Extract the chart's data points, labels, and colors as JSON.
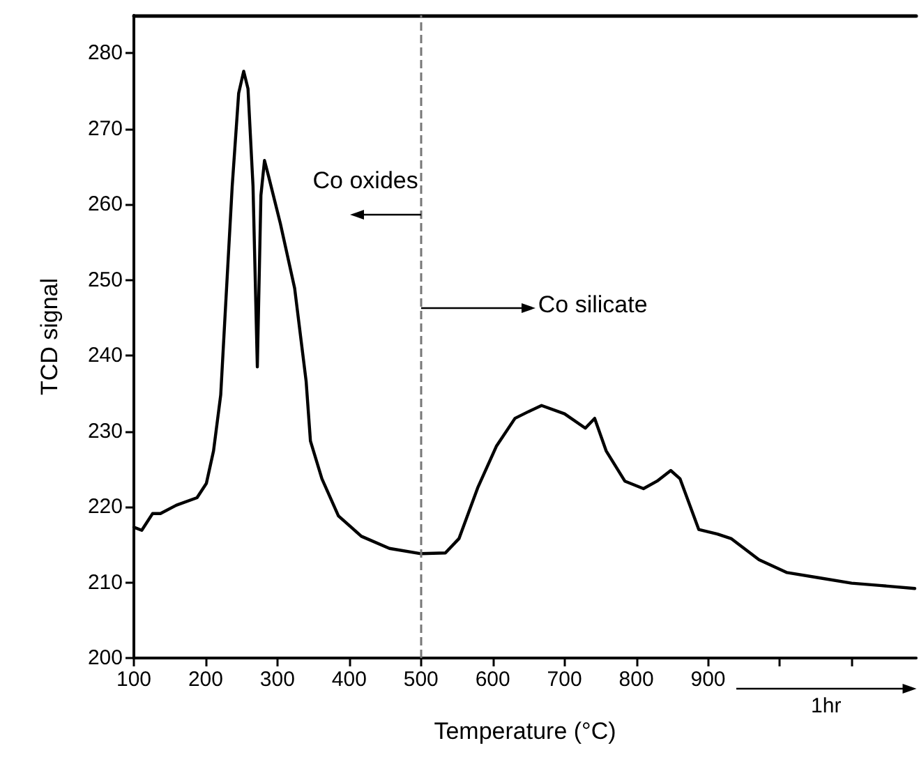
{
  "chart_data": {
    "type": "line",
    "xlabel": "Temperature (°C)",
    "ylabel": "TCD signal",
    "x": [
      100,
      111,
      126,
      137,
      159,
      188,
      201,
      211,
      221,
      227,
      237,
      246,
      253,
      259,
      266,
      272,
      277,
      282,
      288,
      304,
      324,
      340,
      346,
      362,
      385,
      417,
      456,
      500,
      534,
      553,
      579,
      605,
      631,
      650,
      668,
      700,
      729,
      742,
      758,
      784,
      810,
      829,
      848,
      861,
      887,
      913,
      932,
      971,
      1010,
      1055,
      1100,
      1139,
      1188
    ],
    "series": [
      {
        "color": "#000000",
        "values": [
          217.3,
          216.9,
          219.1,
          219.1,
          220.2,
          221.2,
          223.1,
          227.4,
          234.8,
          245.2,
          262.4,
          274.7,
          277.6,
          275.3,
          262.4,
          238.5,
          261.2,
          265.8,
          263.6,
          257.5,
          248.9,
          236.6,
          228.7,
          223.7,
          218.8,
          216.1,
          214.5,
          213.8,
          213.9,
          215.8,
          222.5,
          228.0,
          231.7,
          232.6,
          233.4,
          232.3,
          230.4,
          231.7,
          227.4,
          223.4,
          222.4,
          223.4,
          224.8,
          223.7,
          217.0,
          216.4,
          215.8,
          213.0,
          211.3,
          210.6,
          209.9,
          209.6,
          209.2
        ]
      }
    ],
    "xlim": [
      100,
      1190
    ],
    "xticks": [
      100,
      200,
      300,
      400,
      500,
      600,
      700,
      800,
      900,
      {
        "value": 1000,
        "label": null
      },
      {
        "value": 1100,
        "label": null
      }
    ],
    "ylim": [
      200,
      285
    ],
    "yticks": [
      200,
      210,
      220,
      230,
      240,
      250,
      260,
      270,
      280
    ],
    "grid": false,
    "marker": "none",
    "line_style": "solid",
    "ref_lines": [
      {
        "axis": "x",
        "value": 500,
        "color": "#777777",
        "line_style": "dashed"
      }
    ],
    "annotations": [
      "Co oxides",
      "Co silicate",
      "1hr"
    ]
  }
}
